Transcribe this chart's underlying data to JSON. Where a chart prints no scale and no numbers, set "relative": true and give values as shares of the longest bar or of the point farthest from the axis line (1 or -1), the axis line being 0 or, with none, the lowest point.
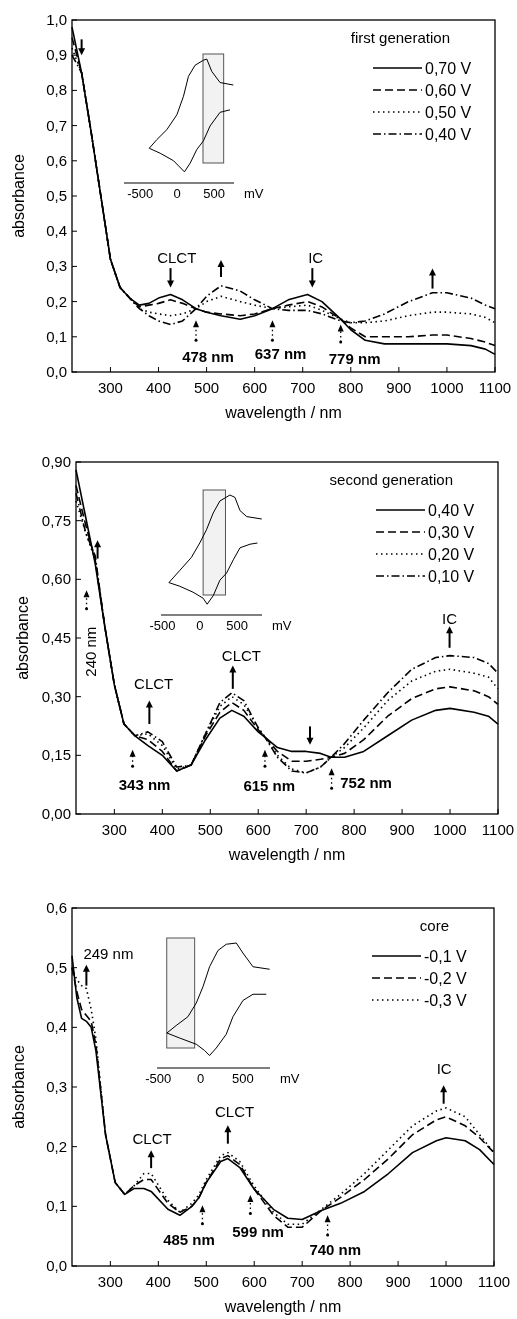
{
  "chart_data": [
    {
      "type": "line",
      "xlabel": "wavelength / nm",
      "ylabel": "absorbance",
      "legend_title": "first generation",
      "legend": "top right",
      "xlim": [
        220,
        1100
      ],
      "xticks": [
        300,
        400,
        500,
        600,
        700,
        800,
        900,
        1000,
        1100
      ],
      "ylim": [
        0,
        1
      ],
      "yticks": [
        {
          "value": 0,
          "label": "0,0"
        },
        {
          "value": 0.1,
          "label": "0,1"
        },
        {
          "value": 0.2,
          "label": "0,2"
        },
        {
          "value": 0.3,
          "label": "0,3"
        },
        {
          "value": 0.4,
          "label": "0,4"
        },
        {
          "value": 0.5,
          "label": "0,5"
        },
        {
          "value": 0.6,
          "label": "0,6"
        },
        {
          "value": 0.7,
          "label": "0,7"
        },
        {
          "value": 0.8,
          "label": "0,8"
        },
        {
          "value": 0.9,
          "label": "0,9"
        },
        {
          "value": 1,
          "label": "1,0"
        }
      ],
      "x": [
        220,
        240,
        260,
        280,
        300,
        320,
        340,
        360,
        380,
        400,
        425,
        450,
        478,
        500,
        530,
        570,
        600,
        637,
        670,
        710,
        740,
        779,
        800,
        830,
        870,
        920,
        970,
        1000,
        1050,
        1080,
        1100
      ],
      "series": [
        {
          "name": "0,70 V",
          "color": "#000000",
          "line_style": "solid",
          "values": [
            0.98,
            0.85,
            0.68,
            0.5,
            0.32,
            0.24,
            0.21,
            0.19,
            0.195,
            0.21,
            0.22,
            0.205,
            0.18,
            0.17,
            0.16,
            0.15,
            0.16,
            0.18,
            0.205,
            0.22,
            0.2,
            0.15,
            0.12,
            0.09,
            0.08,
            0.08,
            0.08,
            0.08,
            0.075,
            0.065,
            0.05
          ]
        },
        {
          "name": "0,60 V",
          "color": "#000000",
          "line_style": "dashed",
          "values": [
            0.95,
            0.85,
            0.68,
            0.5,
            0.32,
            0.24,
            0.21,
            0.185,
            0.19,
            0.195,
            0.205,
            0.195,
            0.18,
            0.17,
            0.165,
            0.16,
            0.165,
            0.18,
            0.19,
            0.2,
            0.185,
            0.15,
            0.125,
            0.1,
            0.1,
            0.1,
            0.105,
            0.105,
            0.095,
            0.085,
            0.075
          ]
        },
        {
          "name": "0,50 V",
          "color": "#000000",
          "line_style": "dotted",
          "values": [
            0.92,
            0.85,
            0.68,
            0.5,
            0.32,
            0.24,
            0.21,
            0.18,
            0.17,
            0.165,
            0.16,
            0.165,
            0.18,
            0.2,
            0.215,
            0.2,
            0.19,
            0.18,
            0.185,
            0.19,
            0.175,
            0.15,
            0.14,
            0.14,
            0.145,
            0.16,
            0.17,
            0.17,
            0.165,
            0.155,
            0.14
          ]
        },
        {
          "name": "0,40 V",
          "color": "#000000",
          "line_style": "dashdot",
          "values": [
            0.9,
            0.85,
            0.68,
            0.5,
            0.32,
            0.24,
            0.21,
            0.18,
            0.16,
            0.145,
            0.135,
            0.145,
            0.18,
            0.215,
            0.245,
            0.23,
            0.205,
            0.18,
            0.175,
            0.175,
            0.165,
            0.145,
            0.14,
            0.145,
            0.165,
            0.2,
            0.225,
            0.225,
            0.21,
            0.19,
            0.18
          ]
        }
      ],
      "annotations": [
        {
          "text": "CLCT",
          "x": 425,
          "y": 0.22
        },
        {
          "text": "IC",
          "x": 715,
          "y": 0.22
        },
        {
          "text": "478 nm",
          "x": 478,
          "y": 0.18
        },
        {
          "text": "637 nm",
          "x": 637,
          "y": 0.18
        },
        {
          "text": "779 nm",
          "x": 779,
          "y": 0.15
        }
      ]
    },
    {
      "type": "line",
      "xlabel": "mV",
      "xlim": [
        -720,
        770
      ],
      "xticks": [
        -500,
        0,
        500
      ],
      "relative": true,
      "tick_labels": "x",
      "bands": [
        {
          "axis": "x",
          "from": 350,
          "to": 630
        }
      ],
      "series": [
        {
          "color": "#000000",
          "x": [
            -378,
            -275,
            -140,
            -4,
            86,
            153,
            243,
            356,
            401,
            469,
            581,
            761
          ],
          "values": [
            0.28,
            0.35,
            0.43,
            0.55,
            0.7,
            0.86,
            0.95,
            0.99,
            1,
            0.9,
            0.81,
            0.79
          ]
        },
        {
          "color": "#000000",
          "x": [
            -378,
            -230,
            -50,
            99,
            176,
            266,
            356,
            446,
            581,
            716
          ],
          "values": [
            0.28,
            0.24,
            0.18,
            0.09,
            0.16,
            0.27,
            0.34,
            0.46,
            0.57,
            0.59
          ]
        }
      ]
    },
    {
      "type": "line",
      "xlabel": "wavelength / nm",
      "ylabel": "absorbance",
      "legend_title": "second generation",
      "legend": "top right",
      "xlim": [
        220,
        1100
      ],
      "xticks": [
        300,
        400,
        500,
        600,
        700,
        800,
        900,
        1000,
        1100
      ],
      "ylim": [
        0,
        0.9
      ],
      "yticks": [
        {
          "value": 0,
          "label": "0,00"
        },
        {
          "value": 0.15,
          "label": "0,15"
        },
        {
          "value": 0.3,
          "label": "0,30"
        },
        {
          "value": 0.45,
          "label": "0,45"
        },
        {
          "value": 0.6,
          "label": "0,60"
        },
        {
          "value": 0.75,
          "label": "0,75"
        },
        {
          "value": 0.9,
          "label": "0,90"
        }
      ],
      "x": [
        220,
        240,
        260,
        280,
        300,
        320,
        343,
        370,
        400,
        430,
        460,
        490,
        520,
        545,
        570,
        600,
        615,
        640,
        670,
        700,
        730,
        752,
        780,
        820,
        870,
        920,
        970,
        1000,
        1050,
        1080,
        1100
      ],
      "series": [
        {
          "name": "0,40 V",
          "color": "#000000",
          "line_style": "solid",
          "values": [
            0.88,
            0.76,
            0.64,
            0.48,
            0.33,
            0.23,
            0.2,
            0.175,
            0.15,
            0.11,
            0.125,
            0.19,
            0.245,
            0.265,
            0.25,
            0.21,
            0.195,
            0.17,
            0.16,
            0.16,
            0.155,
            0.145,
            0.145,
            0.16,
            0.2,
            0.24,
            0.265,
            0.27,
            0.26,
            0.25,
            0.23
          ]
        },
        {
          "name": "0,30 V",
          "color": "#000000",
          "line_style": "dashed",
          "values": [
            0.84,
            0.74,
            0.65,
            0.48,
            0.33,
            0.23,
            0.2,
            0.19,
            0.16,
            0.11,
            0.125,
            0.2,
            0.26,
            0.285,
            0.265,
            0.215,
            0.195,
            0.16,
            0.135,
            0.135,
            0.14,
            0.145,
            0.155,
            0.19,
            0.25,
            0.295,
            0.32,
            0.325,
            0.315,
            0.3,
            0.28
          ]
        },
        {
          "name": "0,20 V",
          "color": "#000000",
          "line_style": "dotted",
          "values": [
            0.8,
            0.72,
            0.65,
            0.48,
            0.33,
            0.23,
            0.2,
            0.205,
            0.175,
            0.115,
            0.125,
            0.205,
            0.275,
            0.3,
            0.28,
            0.22,
            0.195,
            0.15,
            0.115,
            0.105,
            0.12,
            0.145,
            0.17,
            0.22,
            0.29,
            0.34,
            0.365,
            0.37,
            0.36,
            0.35,
            0.32
          ]
        },
        {
          "name": "0,10 V",
          "color": "#000000",
          "line_style": "dashdot",
          "values": [
            0.82,
            0.72,
            0.66,
            0.48,
            0.33,
            0.23,
            0.2,
            0.21,
            0.185,
            0.12,
            0.125,
            0.205,
            0.285,
            0.31,
            0.29,
            0.22,
            0.195,
            0.145,
            0.11,
            0.105,
            0.12,
            0.145,
            0.18,
            0.24,
            0.31,
            0.37,
            0.4,
            0.405,
            0.4,
            0.385,
            0.36
          ]
        }
      ],
      "annotations": [
        "240 nm",
        {
          "text": "CLCT",
          "x": 375,
          "y": 0.21
        },
        {
          "text": "CLCT",
          "x": 550,
          "y": 0.31
        },
        {
          "text": "IC",
          "x": 1000,
          "y": 0.405
        },
        {
          "text": "343 nm",
          "x": 343,
          "y": 0.2
        },
        {
          "text": "615 nm",
          "x": 615,
          "y": 0.195
        },
        {
          "text": "752 nm",
          "x": 752,
          "y": 0.145
        }
      ]
    },
    {
      "type": "line",
      "xlabel": "mV",
      "xlim": [
        -520,
        835
      ],
      "xticks": [
        -500,
        0,
        500
      ],
      "relative": true,
      "tick_labels": "x",
      "bands": [
        {
          "axis": "x",
          "from": 45,
          "to": 345
        }
      ],
      "series": [
        {
          "color": "#000000",
          "x": [
            -414,
            -270,
            -112,
            0,
            90,
            180,
            270,
            405,
            472,
            540,
            630,
            832
          ],
          "values": [
            0.27,
            0.37,
            0.48,
            0.6,
            0.71,
            0.85,
            0.95,
            1,
            0.98,
            0.87,
            0.82,
            0.8
          ]
        },
        {
          "color": "#000000",
          "x": [
            -414,
            -270,
            -90,
            45,
            99,
            180,
            270,
            360,
            450,
            540,
            675,
            774
          ],
          "values": [
            0.27,
            0.24,
            0.19,
            0.14,
            0.09,
            0.16,
            0.29,
            0.35,
            0.46,
            0.56,
            0.59,
            0.6
          ]
        }
      ]
    },
    {
      "type": "line",
      "xlabel": "wavelength / nm",
      "ylabel": "absorbance",
      "legend_title": "core",
      "legend": "top right",
      "xlim": [
        220,
        1100
      ],
      "xticks": [
        300,
        400,
        500,
        600,
        700,
        800,
        900,
        1000,
        1100
      ],
      "ylim": [
        0,
        0.6
      ],
      "yticks": [
        {
          "value": 0,
          "label": "0,0"
        },
        {
          "value": 0.1,
          "label": "0,1"
        },
        {
          "value": 0.2,
          "label": "0,2"
        },
        {
          "value": 0.3,
          "label": "0,3"
        },
        {
          "value": 0.4,
          "label": "0,4"
        },
        {
          "value": 0.5,
          "label": "0,5"
        },
        {
          "value": 0.6,
          "label": "0,6"
        }
      ],
      "x": [
        220,
        230,
        240,
        250,
        260,
        270,
        290,
        310,
        330,
        350,
        370,
        385,
        420,
        445,
        470,
        485,
        500,
        530,
        545,
        570,
        599,
        640,
        670,
        700,
        740,
        780,
        830,
        880,
        930,
        980,
        1000,
        1040,
        1070,
        1100
      ],
      "series": [
        {
          "name": "-0,1 V",
          "color": "#000000",
          "line_style": "solid",
          "values": [
            0.52,
            0.45,
            0.415,
            0.41,
            0.4,
            0.36,
            0.22,
            0.14,
            0.12,
            0.13,
            0.13,
            0.125,
            0.095,
            0.085,
            0.1,
            0.115,
            0.14,
            0.175,
            0.18,
            0.165,
            0.13,
            0.095,
            0.08,
            0.078,
            0.093,
            0.105,
            0.125,
            0.155,
            0.19,
            0.21,
            0.215,
            0.21,
            0.195,
            0.17
          ]
        },
        {
          "name": "-0,2 V",
          "color": "#000000",
          "line_style": "dashed",
          "values": [
            0.5,
            0.46,
            0.43,
            0.42,
            0.41,
            0.37,
            0.22,
            0.14,
            0.12,
            0.135,
            0.145,
            0.145,
            0.105,
            0.09,
            0.1,
            0.115,
            0.14,
            0.18,
            0.185,
            0.17,
            0.13,
            0.085,
            0.065,
            0.065,
            0.093,
            0.115,
            0.145,
            0.18,
            0.22,
            0.245,
            0.25,
            0.235,
            0.215,
            0.19
          ]
        },
        {
          "name": "-0,3 V",
          "color": "#000000",
          "line_style": "dotted",
          "values": [
            0.5,
            0.48,
            0.47,
            0.465,
            0.43,
            0.38,
            0.22,
            0.14,
            0.12,
            0.135,
            0.155,
            0.155,
            0.11,
            0.09,
            0.105,
            0.12,
            0.145,
            0.185,
            0.19,
            0.175,
            0.135,
            0.09,
            0.07,
            0.07,
            0.095,
            0.12,
            0.155,
            0.195,
            0.235,
            0.26,
            0.265,
            0.25,
            0.22,
            0.19
          ]
        }
      ],
      "annotations": [
        {
          "text": "249 nm",
          "x": 249,
          "y": 0.465
        },
        {
          "text": "CLCT",
          "x": 385,
          "y": 0.155
        },
        {
          "text": "CLCT",
          "x": 545,
          "y": 0.19
        },
        {
          "text": "IC",
          "x": 995,
          "y": 0.265
        },
        {
          "text": "485 nm",
          "x": 485,
          "y": 0.115
        },
        {
          "text": "599 nm",
          "x": 599,
          "y": 0.13
        },
        {
          "text": "740 nm",
          "x": 740,
          "y": 0.093
        }
      ]
    },
    {
      "type": "line",
      "xlabel": "mV",
      "xlim": [
        -515,
        820
      ],
      "xticks": [
        -500,
        0,
        500
      ],
      "relative": true,
      "tick_labels": "x",
      "bands": [
        {
          "axis": "x",
          "from": -400,
          "to": -70
        }
      ],
      "series": [
        {
          "color": "#000000",
          "x": [
            -398,
            -288,
            -150,
            -51,
            28,
            106,
            205,
            303,
            422,
            500,
            619,
            816
          ],
          "values": [
            0.28,
            0.34,
            0.41,
            0.52,
            0.65,
            0.81,
            0.94,
            0.99,
            1,
            0.92,
            0.81,
            0.79
          ]
        },
        {
          "color": "#000000",
          "x": [
            -398,
            -248,
            -51,
            47,
            106,
            185,
            303,
            382,
            500,
            619,
            776
          ],
          "values": [
            0.28,
            0.24,
            0.19,
            0.14,
            0.1,
            0.16,
            0.27,
            0.41,
            0.54,
            0.59,
            0.59
          ]
        }
      ]
    }
  ]
}
